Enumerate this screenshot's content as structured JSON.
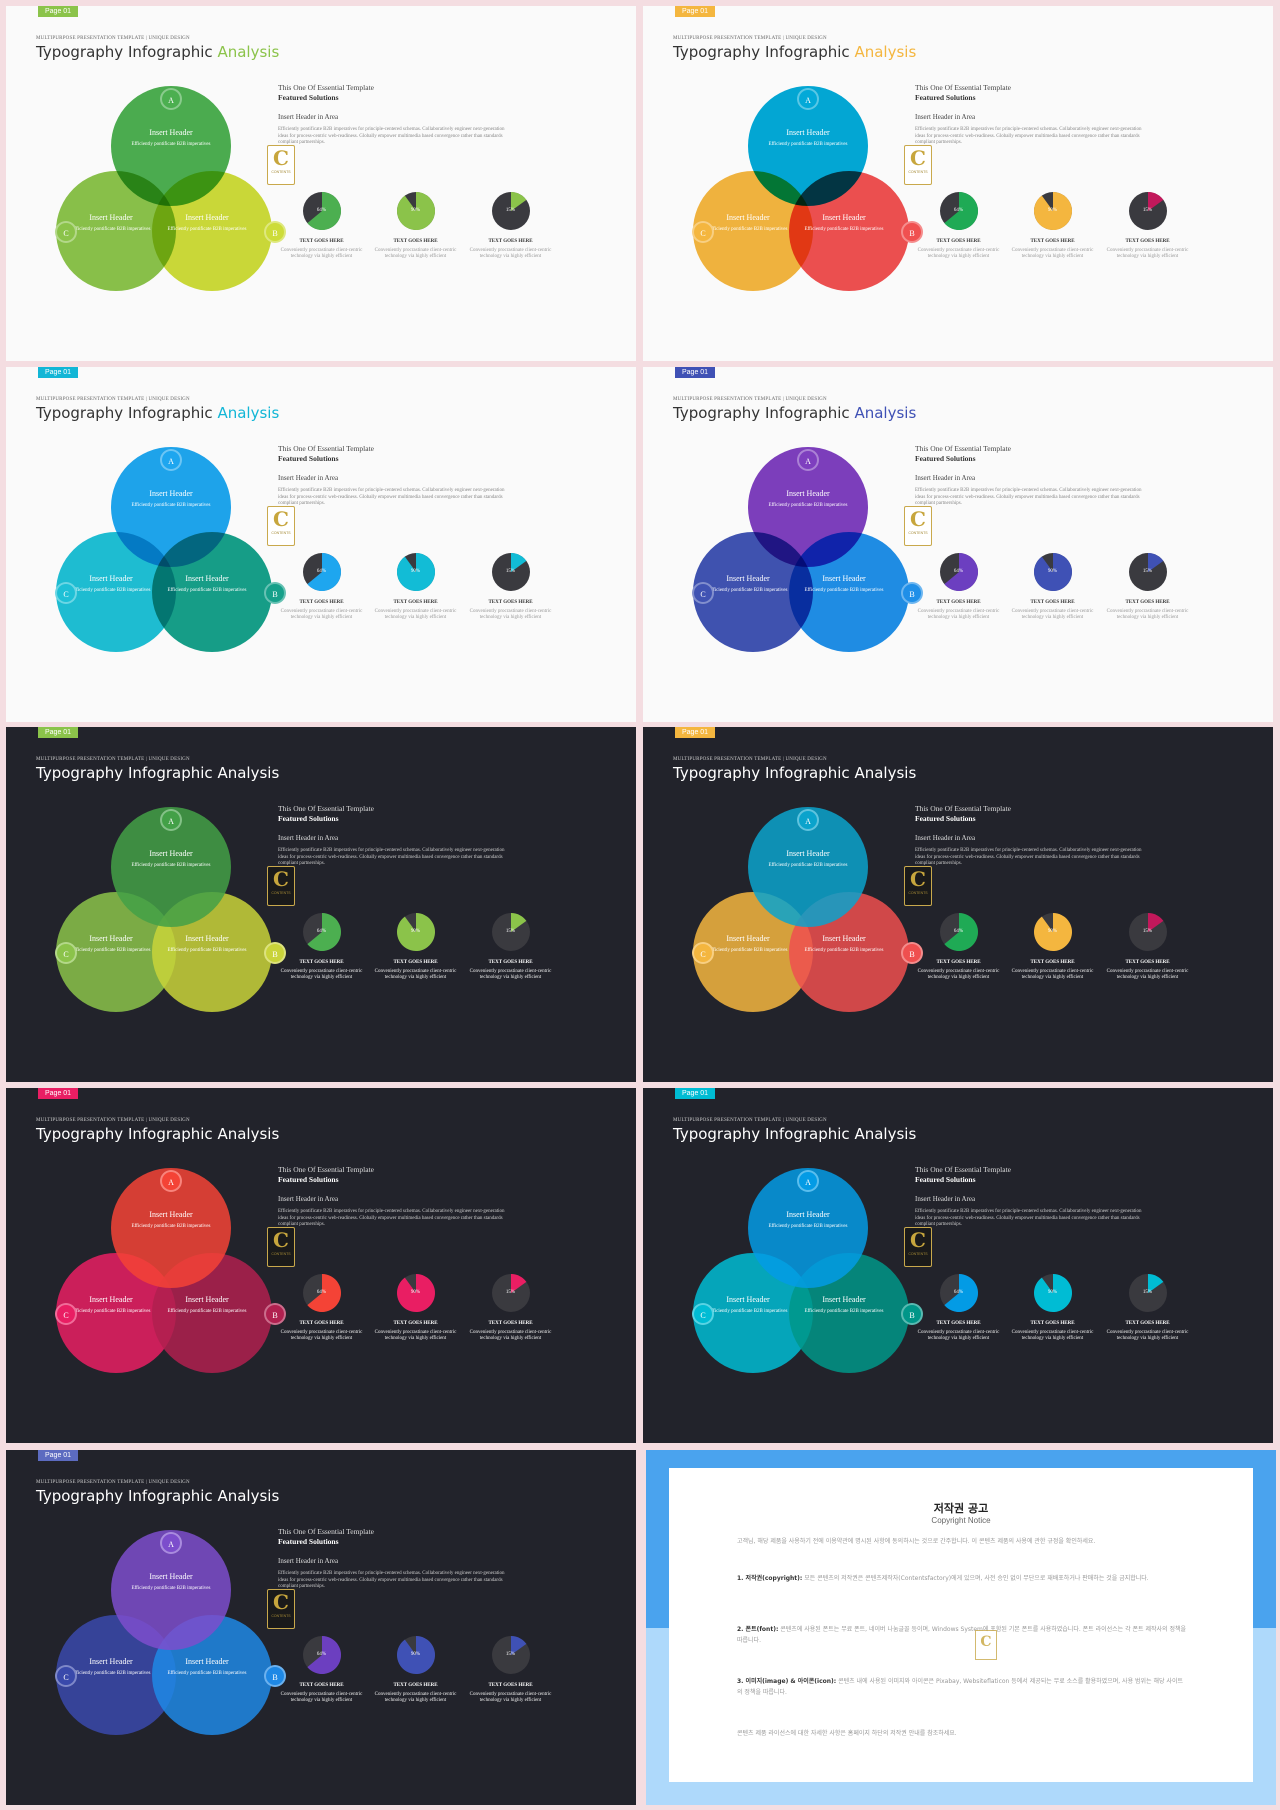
{
  "title_prefix": "Typography Infographic",
  "title_accent": "Analysis",
  "supertitle": "MULTIPURPOSE PRESENTATION TEMPLATE | UNIQUE DESIGN",
  "page_tag": "Page 01",
  "lead": "This One Of Essential  Template",
  "featured": "Featured Solutions",
  "insert_header_area": "Insert Header  in Area",
  "paragraph": "Efficiently pontificate B2B imperatives for principle-centered schemas. Collaboratively engineer next-generation ideas for process-centric web-readiness. Globally empower multimedia based convergence rather than standards compliant partnerships.",
  "venn": {
    "header": "Insert Header",
    "desc": "Efficiently pontificate B2B imperatives",
    "badge_a": "A",
    "badge_b": "B",
    "badge_c": "C"
  },
  "logo": {
    "letter": "C",
    "text": "CONTENTS",
    "icon": "contents-logo-icon"
  },
  "pies": [
    {
      "label": "64%",
      "value": 0.64,
      "title": "TEXT GOES HERE",
      "desc": "Conveniently procrastinate client-centric technology via highly efficient"
    },
    {
      "label": "90%",
      "value": 0.9,
      "title": "TEXT GOES HERE",
      "desc": "Conveniently procrastinate client-centric technology via highly efficient"
    },
    {
      "label": "15%",
      "value": 0.15,
      "title": "TEXT GOES HERE",
      "desc": "Conveniently procrastinate client-centric technology via highly efficient"
    }
  ],
  "pie_remainder_color": "#3a3a3f",
  "slides": [
    {
      "theme": "light",
      "accent": "#8bc34a",
      "top": "#4caf50",
      "left": "#8bc34a",
      "right": "#cddc39",
      "pies": [
        "#4caf50",
        "#8bc34a",
        "#8bc34a"
      ]
    },
    {
      "theme": "light",
      "accent": "#f4b63f",
      "top": "#03a9d8",
      "left": "#f4b63f",
      "right": "#f05050",
      "pies": [
        "#1faa55",
        "#f4b63f",
        "#c2185b"
      ]
    },
    {
      "theme": "light",
      "accent": "#12b6d6",
      "top": "#1ea6ef",
      "left": "#1ec0d6",
      "right": "#16a08a",
      "pies": [
        "#1ea6ef",
        "#12bcd6",
        "#12bcd6"
      ]
    },
    {
      "theme": "light",
      "accent": "#3f51b5",
      "top": "#7e3fbf",
      "left": "#4053b3",
      "right": "#1f8fe8",
      "pies": [
        "#6c3fc0",
        "#3f51b5",
        "#3f51b5"
      ]
    },
    {
      "theme": "dark",
      "accent": "#8bc34a",
      "top": "#43a047",
      "left": "#8bc34a",
      "right": "#c9d33a",
      "pies": [
        "#4caf50",
        "#8bc34a",
        "#8bc34a"
      ]
    },
    {
      "theme": "dark",
      "accent": "#f4b63f",
      "top": "#0aa3cc",
      "left": "#f4b63f",
      "right": "#ef4f4f",
      "pies": [
        "#1faa55",
        "#f4b63f",
        "#c2185b"
      ]
    },
    {
      "theme": "dark",
      "accent": "#e91e63",
      "top": "#f44336",
      "left": "#e91e63",
      "right": "#b0204f",
      "pies": [
        "#f44336",
        "#e91e63",
        "#e91e63"
      ]
    },
    {
      "theme": "dark",
      "accent": "#00bcd4",
      "top": "#039be5",
      "left": "#00bcd4",
      "right": "#009688",
      "pies": [
        "#039be5",
        "#00bcd4",
        "#00bcd4"
      ]
    },
    {
      "theme": "dark",
      "accent": "#5c6bc0",
      "top": "#7c4dcc",
      "left": "#3949ab",
      "right": "#1e88e5",
      "pies": [
        "#6c3fc0",
        "#3f51b5",
        "#3f51b5"
      ]
    }
  ],
  "copyright": {
    "title": "저작권 공고",
    "subtitle": "Copyright Notice",
    "intro": "고객님, 해당 제품을 사용하기 전에 이용약관에 명시된 사항에 동의하시는 것으로 간주합니다. 이 콘텐츠 제품의 사용에 관한 규정을 확인하세요.",
    "items": [
      {
        "label": "1. 저작권(copyright):",
        "text": "모든 콘텐츠의 저작권은 콘텐츠제작자(Contentsfactory)에게 있으며, 사전 승인 없이 무단으로 재배포하거나 판매하는 것을 금지합니다."
      },
      {
        "label": "2. 폰트(font):",
        "text": "콘텐츠에 사용된 폰트는 무료 폰트, 네이버 나눔글꼴 등이며, Windows System에 포함된 기본 폰트를 사용하였습니다. 폰트 라이선스는 각 폰트 제작사의 정책을 따릅니다."
      },
      {
        "label": "3. 이미지(image) & 아이콘(icon):",
        "text": "콘텐츠 내에 사용된 이미지와 아이콘은 Pixabay, Websiteflaticon 등에서 제공되는 무료 소스를 활용하였으며, 사용 범위는 해당 사이트의 정책을 따릅니다."
      }
    ],
    "outro": "콘텐츠 제품 라이선스에 대한 자세한 사항은 홈페이지 하단의 저작권 안내를 참조하세요."
  }
}
